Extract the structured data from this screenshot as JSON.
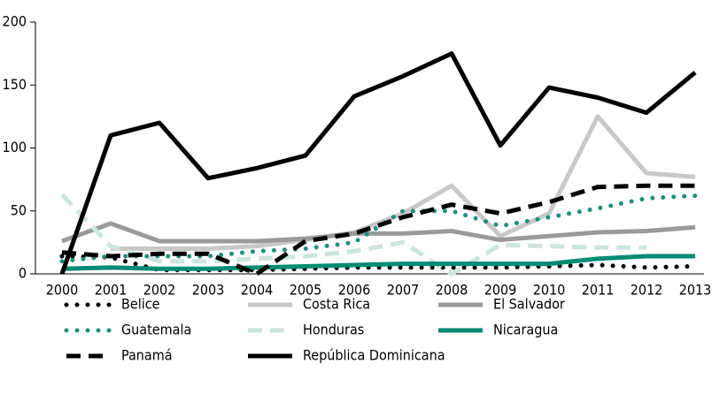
{
  "chart_data": {
    "type": "line",
    "categories": [
      "2000",
      "2001",
      "2002",
      "2003",
      "2004",
      "2005",
      "2006",
      "2007",
      "2008",
      "2009",
      "2010",
      "2011",
      "2012",
      "2013"
    ],
    "ylim": [
      0,
      200
    ],
    "yticks": [
      0,
      50,
      100,
      150,
      200
    ],
    "grid": false,
    "series": [
      {
        "name": "Belice",
        "color": "#000000",
        "dash": "dotted",
        "values": [
          14,
          13,
          3,
          3,
          3,
          4,
          5,
          5,
          5,
          5,
          6,
          7,
          5,
          6
        ]
      },
      {
        "name": "Costa Rica",
        "color": "#c8c8c8",
        "dash": "solid",
        "values": [
          null,
          20,
          20,
          20,
          22,
          27,
          33,
          48,
          70,
          30,
          48,
          125,
          80,
          77
        ]
      },
      {
        "name": "El Salvador",
        "color": "#9a9a9b",
        "dash": "solid",
        "values": [
          26,
          40,
          26,
          26,
          26,
          28,
          32,
          32,
          34,
          27,
          30,
          33,
          34,
          37
        ]
      },
      {
        "name": "Guatemala",
        "color": "#1f8f7a",
        "dash": "dotted",
        "values": [
          10,
          14,
          14,
          14,
          18,
          20,
          25,
          50,
          50,
          38,
          45,
          52,
          60,
          62
        ]
      },
      {
        "name": "Honduras",
        "color": "#cce5df",
        "dash": "dashed",
        "values": [
          63,
          22,
          10,
          10,
          12,
          14,
          18,
          25,
          0,
          23,
          22,
          21,
          21,
          null
        ]
      },
      {
        "name": "Nicaragua",
        "color": "#008b74",
        "dash": "solid",
        "values": [
          4,
          5,
          4,
          4,
          5,
          6,
          7,
          8,
          8,
          8,
          8,
          12,
          14,
          14
        ]
      },
      {
        "name": "Panamá",
        "color": "#000000",
        "dash": "dashed",
        "values": [
          17,
          14,
          16,
          16,
          0,
          26,
          32,
          45,
          55,
          48,
          57,
          69,
          70,
          70
        ]
      },
      {
        "name": "República Dominicana",
        "color": "#000000",
        "dash": "solid",
        "values": [
          0,
          110,
          120,
          76,
          84,
          94,
          141,
          157,
          175,
          102,
          148,
          140,
          128,
          160
        ]
      }
    ]
  }
}
